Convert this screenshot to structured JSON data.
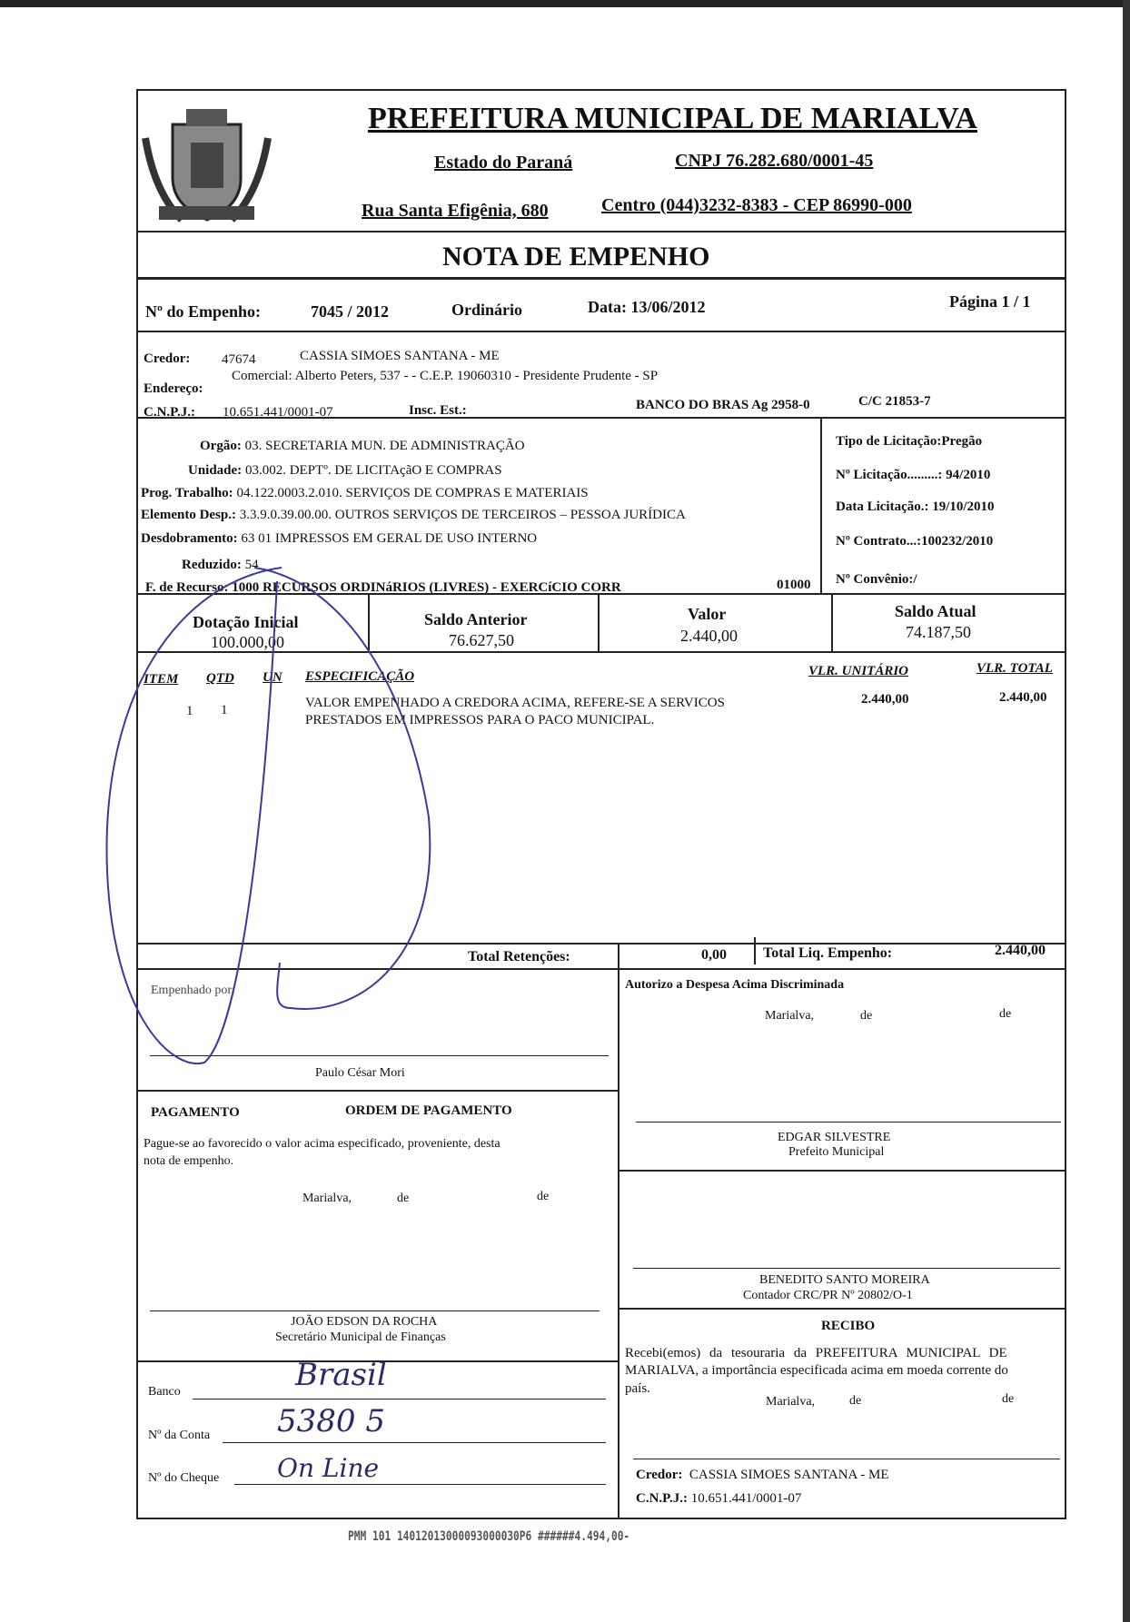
{
  "header": {
    "title": "PREFEITURA MUNICIPAL DE MARIALVA",
    "state": "Estado do Paraná",
    "cnpj": "CNPJ 76.282.680/0001-45",
    "address": "Rua Santa Efigênia, 680",
    "district_phone": "Centro  (044)3232-8383  -  CEP 86990-000",
    "doc_title": "NOTA  DE  EMPENHO"
  },
  "empenho": {
    "label": "Nº do Empenho:",
    "number": "7045 / 2012",
    "type": "Ordinário",
    "date": "Data: 13/06/2012",
    "page": "Página  1 / 1"
  },
  "credor": {
    "label": "Credor:",
    "code": "47674",
    "name": "CASSIA SIMOES SANTANA - ME",
    "address_label": "Endereço:",
    "address": "Comercial: Alberto Peters, 537 -  -  C.E.P. 19060310  -  Presidente Prudente  -  SP",
    "cnpj_label": "C.N.P.J.:",
    "cnpj": "10.651.441/0001-07",
    "insc_label": "Insc. Est.:",
    "bank": "BANCO DO BRAS  Ag   2958-0",
    "cc": "C/C   21853-7"
  },
  "dotacao": {
    "orgao_label": "Orgão:",
    "orgao": "03.      SECRETARIA MUN. DE ADMINISTRAÇÃO",
    "unidade_label": "Unidade:",
    "unidade": "03.002.   DEPTº. DE LICITAçãO E COMPRAS",
    "prog_label": "Prog. Trabalho:",
    "prog": "04.122.0003.2.010.  SERVIÇOS DE COMPRAS E MATERIAIS",
    "elemento_label": "Elemento Desp.:",
    "elemento": "3.3.9.0.39.00.00.   OUTROS SERVIÇOS DE TERCEIROS – PESSOA JURÍDICA",
    "desdob_label": "Desdobramento:",
    "desdob": "63     01      IMPRESSOS EM  GERAL DE USO INTERNO",
    "reduzido_label": "Reduzido:",
    "reduzido": "54",
    "recurso_label": "F. de Recurso:",
    "recurso": "1000        RECURSOS ORDINáRIOS (LIVRES) - EXERCíCIO CORR",
    "recurso_code": "01000"
  },
  "licitacao": {
    "tipo": "Tipo de Licitação:Pregão",
    "numero": "Nº Licitação.........: 94/2010",
    "data": "Data Licitação.: 19/10/2010",
    "contrato": "Nº Contrato...:100232/2010",
    "convenio": "Nº Convênio:/"
  },
  "saldos": {
    "dot_label": "Dotação Inicial",
    "dot": "100.000,00",
    "ant_label": "Saldo Anterior",
    "ant": "76.627,50",
    "valor_label": "Valor",
    "valor": "2.440,00",
    "atual_label": "Saldo Atual",
    "atual": "74.187,50"
  },
  "items": {
    "headers": [
      "ITEM",
      "QTD",
      "UN",
      "ESPECIFICAÇÃO",
      "VLR. UNITÁRIO",
      "VLR. TOTAL"
    ],
    "rows": [
      {
        "item": "1",
        "qtd": "1",
        "un": "",
        "desc1": "VALOR EMPENHADO A CREDORA ACIMA, REFERE-SE A SERVICOS",
        "desc2": "PRESTADOS EM IMPRESSOS PARA O PACO MUNICIPAL.",
        "unit": "2.440,00",
        "total": "2.440,00"
      }
    ]
  },
  "totals": {
    "ret_label": "Total Retenções:",
    "ret": "0,00",
    "liq_label": "Total Liq. Empenho:",
    "liq": "2.440,00"
  },
  "sign": {
    "empenhado": "Empenhado por:",
    "empenhado_name": "Paulo César Mori",
    "autorizo": "Autorizo a Despesa Acima Discriminada",
    "city": "Marialva,",
    "de": "de",
    "prefeito": "EDGAR SILVESTRE",
    "prefeito_role": "Prefeito Municipal",
    "contador": "BENEDITO SANTO MOREIRA",
    "contador_role": "Contador CRC/PR Nº 20802/O-1"
  },
  "pagamento": {
    "label": "PAGAMENTO",
    "ordem": "ORDEM DE PAGAMENTO",
    "text1": "Pague-se ao favorecido o valor acima especificado, proveniente, desta",
    "text2": "nota de empenho.",
    "secretario": "JOÃO EDSON DA ROCHA",
    "secretario_role": "Secretário Municipal de Finanças",
    "banco": "Banco",
    "conta": "Nº da Conta",
    "cheque": "Nº do Cheque",
    "banco_hw": "Brasil",
    "conta_hw": "5380 5",
    "cheque_hw": "On Line"
  },
  "recibo": {
    "title": "RECIBO",
    "text1": "Recebi(emos) da tesouraria da PREFEITURA MUNICIPAL DE",
    "text2": "MARIALVA, a importância especificada acima em moeda corrente do",
    "text3": "país.",
    "credor_label": "Credor:",
    "credor": "CASSIA SIMOES SANTANA - ME",
    "cnpj_label": "C.N.P.J.:",
    "cnpj": "10.651.441/0001-07"
  },
  "stamp": "PMM 101 14012013000093000030P6 ######4.494,00-",
  "colors": {
    "ink": "#111111",
    "pen": "#3a3a9a"
  }
}
